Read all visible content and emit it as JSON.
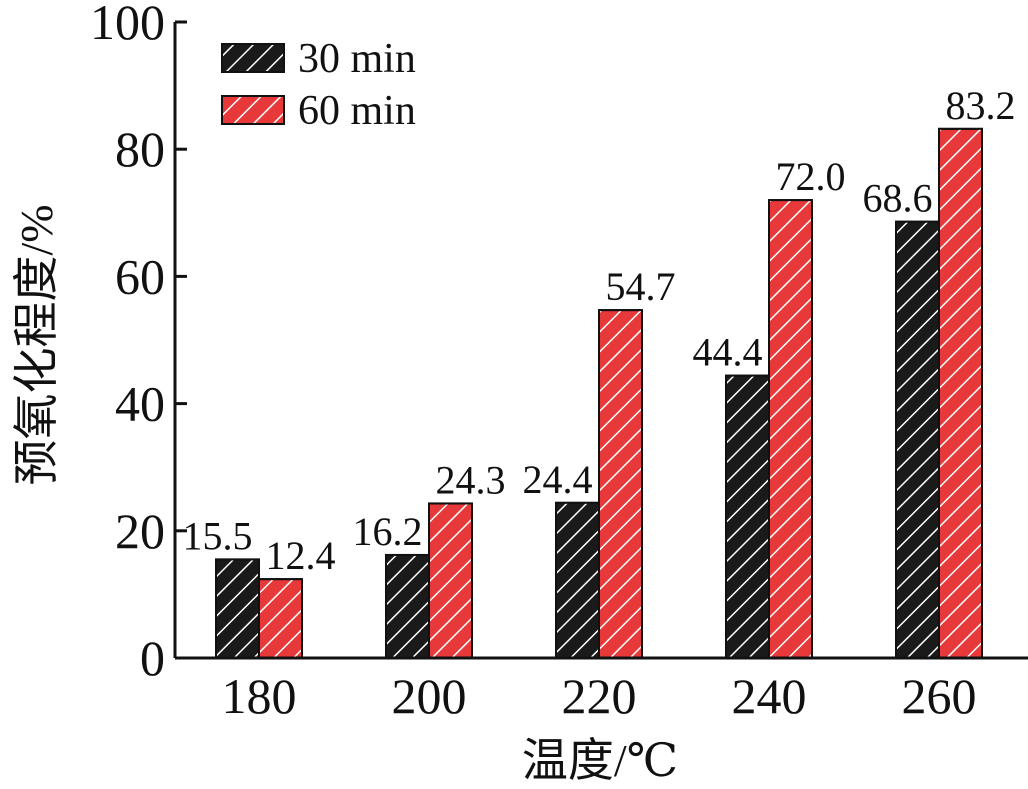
{
  "chart_data": {
    "type": "bar",
    "categories": [
      "180",
      "200",
      "220",
      "240",
      "260"
    ],
    "series": [
      {
        "name": "30 min",
        "values": [
          15.5,
          16.2,
          24.4,
          44.4,
          68.6
        ],
        "labels": [
          "15.5",
          "16.2",
          "24.4",
          "44.4",
          "68.6"
        ],
        "color": "#1a1a1a"
      },
      {
        "name": "60 min",
        "values": [
          12.4,
          24.3,
          54.7,
          72.0,
          83.2
        ],
        "labels": [
          "12.4",
          "24.3",
          "54.7",
          "72.0",
          "83.2"
        ],
        "color": "#e8393a"
      }
    ],
    "title": "",
    "xlabel": "温度/℃",
    "ylabel": "预氧化程度/%",
    "ylim": [
      0,
      100
    ],
    "yticks": [
      0,
      20,
      40,
      60,
      80,
      100
    ],
    "grid": false,
    "legend_position": "top-left",
    "pattern": "diagonal-hatch-white"
  }
}
